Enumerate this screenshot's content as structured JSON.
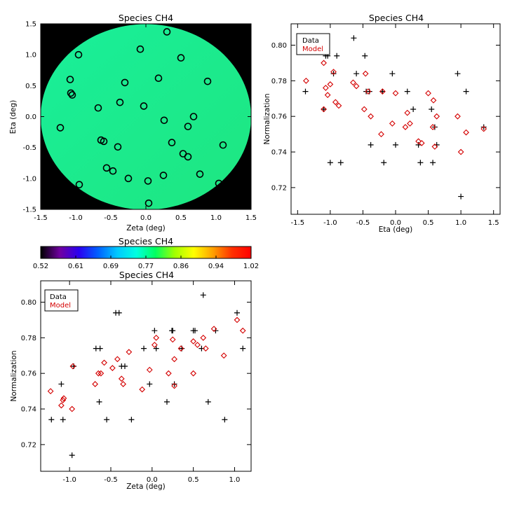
{
  "colors": {
    "data": "#000000",
    "model": "#d40000",
    "frame": "#000000",
    "map_background": "#000000"
  },
  "legend": {
    "data_label": "Data",
    "model_label": "Model",
    "placement": "top-left"
  },
  "chart_data": [
    {
      "id": "map",
      "type": "heatmap",
      "title": "Species CH4",
      "xlabel": "Zeta (deg)",
      "ylabel": "Eta (deg)",
      "xlim": [
        -1.5,
        1.5
      ],
      "ylim": [
        -1.5,
        1.5
      ],
      "xticks": [
        "-1.5",
        "-1.0",
        "-0.5",
        "0.0",
        "0.5",
        "1.0",
        "1.5"
      ],
      "yticks": [
        "-1.5",
        "-1.0",
        "-0.5",
        "0.0",
        "0.5",
        "1.0",
        "1.5"
      ],
      "field_radius_deg": 1.5,
      "field_color_range": [
        "#19ef9a",
        "#1ee680"
      ],
      "markers": [
        [
          -0.96,
          1.0
        ],
        [
          0.3,
          1.37
        ],
        [
          -0.08,
          1.09
        ],
        [
          0.5,
          0.95
        ],
        [
          -1.08,
          0.6
        ],
        [
          -1.07,
          0.38
        ],
        [
          -1.05,
          0.35
        ],
        [
          -0.3,
          0.55
        ],
        [
          0.18,
          0.62
        ],
        [
          0.88,
          0.57
        ],
        [
          -0.68,
          0.14
        ],
        [
          -0.37,
          0.23
        ],
        [
          -0.03,
          0.17
        ],
        [
          0.68,
          0.0
        ],
        [
          0.26,
          -0.06
        ],
        [
          0.6,
          -0.16
        ],
        [
          -1.22,
          -0.18
        ],
        [
          -0.64,
          -0.38
        ],
        [
          -0.6,
          -0.4
        ],
        [
          -0.4,
          -0.49
        ],
        [
          0.37,
          -0.42
        ],
        [
          1.1,
          -0.46
        ],
        [
          0.53,
          -0.6
        ],
        [
          0.6,
          -0.65
        ],
        [
          -0.56,
          -0.83
        ],
        [
          -0.47,
          -0.88
        ],
        [
          0.25,
          -0.95
        ],
        [
          0.77,
          -0.93
        ],
        [
          -0.25,
          -1.0
        ],
        [
          0.03,
          -1.04
        ],
        [
          -0.95,
          -1.1
        ],
        [
          1.04,
          -1.08
        ],
        [
          0.04,
          -1.4
        ]
      ]
    },
    {
      "id": "eta",
      "type": "scatter",
      "title": "Species CH4",
      "xlabel": "Eta (deg)",
      "ylabel": "Normalization",
      "xlim": [
        -1.6,
        1.6
      ],
      "ylim": [
        0.705,
        0.812
      ],
      "xticks": [
        -1.5,
        -1.0,
        -0.5,
        0.0,
        0.5,
        1.0,
        1.5
      ],
      "yticks": [
        0.72,
        0.74,
        0.76,
        0.78,
        0.8
      ],
      "series": [
        {
          "name": "Data",
          "marker": "plus",
          "points": [
            [
              -1.38,
              0.774
            ],
            [
              -1.1,
              0.764
            ],
            [
              -1.07,
              0.794
            ],
            [
              -1.04,
              0.794
            ],
            [
              -1.0,
              0.734
            ],
            [
              -0.95,
              0.784
            ],
            [
              -0.9,
              0.794
            ],
            [
              -0.84,
              0.734
            ],
            [
              -0.64,
              0.804
            ],
            [
              -0.6,
              0.784
            ],
            [
              -0.47,
              0.794
            ],
            [
              -0.45,
              0.774
            ],
            [
              -0.4,
              0.774
            ],
            [
              -0.38,
              0.744
            ],
            [
              -0.2,
              0.774
            ],
            [
              -0.18,
              0.734
            ],
            [
              -0.05,
              0.784
            ],
            [
              0.0,
              0.744
            ],
            [
              0.18,
              0.774
            ],
            [
              0.27,
              0.764
            ],
            [
              0.35,
              0.744
            ],
            [
              0.38,
              0.734
            ],
            [
              0.55,
              0.764
            ],
            [
              0.57,
              0.734
            ],
            [
              0.6,
              0.754
            ],
            [
              0.63,
              0.744
            ],
            [
              0.95,
              0.784
            ],
            [
              1.0,
              0.715
            ],
            [
              1.08,
              0.774
            ],
            [
              1.35,
              0.754
            ]
          ]
        },
        {
          "name": "Model",
          "marker": "diamond",
          "points": [
            [
              -1.37,
              0.78
            ],
            [
              -1.1,
              0.79
            ],
            [
              -1.1,
              0.764
            ],
            [
              -1.07,
              0.776
            ],
            [
              -1.04,
              0.772
            ],
            [
              -1.0,
              0.778
            ],
            [
              -0.95,
              0.785
            ],
            [
              -0.92,
              0.768
            ],
            [
              -0.87,
              0.766
            ],
            [
              -0.65,
              0.779
            ],
            [
              -0.6,
              0.777
            ],
            [
              -0.48,
              0.764
            ],
            [
              -0.46,
              0.784
            ],
            [
              -0.42,
              0.774
            ],
            [
              -0.38,
              0.76
            ],
            [
              -0.2,
              0.774
            ],
            [
              -0.22,
              0.75
            ],
            [
              -0.05,
              0.756
            ],
            [
              0.0,
              0.773
            ],
            [
              0.15,
              0.754
            ],
            [
              0.18,
              0.762
            ],
            [
              0.22,
              0.756
            ],
            [
              0.35,
              0.746
            ],
            [
              0.4,
              0.745
            ],
            [
              0.5,
              0.773
            ],
            [
              0.57,
              0.754
            ],
            [
              0.58,
              0.769
            ],
            [
              0.6,
              0.743
            ],
            [
              0.63,
              0.76
            ],
            [
              0.95,
              0.76
            ],
            [
              1.0,
              0.74
            ],
            [
              1.08,
              0.751
            ],
            [
              1.35,
              0.753
            ]
          ]
        }
      ]
    },
    {
      "id": "colorbar",
      "type": "colorbar",
      "title": "Species CH4",
      "range": [
        0.52,
        1.02
      ],
      "tick_labels": [
        "0.52",
        "0.61",
        "0.69",
        "0.77",
        "0.86",
        "0.94",
        "1.02"
      ],
      "colormap_stops": [
        "#000000",
        "#7000a0",
        "#2a00f0",
        "#0060ff",
        "#00c8ff",
        "#00ffe0",
        "#00ff60",
        "#a0ff00",
        "#ffff00",
        "#ffa000",
        "#ff3000",
        "#ff0000"
      ]
    },
    {
      "id": "zeta",
      "type": "scatter",
      "title": "Species CH4",
      "xlabel": "Zeta (deg)",
      "ylabel": "Normalization",
      "xlim": [
        -1.35,
        1.2
      ],
      "ylim": [
        0.705,
        0.812
      ],
      "xticks": [
        -1.0,
        -0.5,
        0.0,
        0.5,
        1.0
      ],
      "yticks": [
        0.72,
        0.74,
        0.76,
        0.78,
        0.8
      ],
      "series": [
        {
          "name": "Data",
          "marker": "plus",
          "points": [
            [
              -1.22,
              0.734
            ],
            [
              -1.1,
              0.754
            ],
            [
              -1.08,
              0.734
            ],
            [
              -0.97,
              0.714
            ],
            [
              -0.95,
              0.764
            ],
            [
              -0.68,
              0.774
            ],
            [
              -0.64,
              0.744
            ],
            [
              -0.63,
              0.774
            ],
            [
              -0.55,
              0.734
            ],
            [
              -0.44,
              0.794
            ],
            [
              -0.4,
              0.794
            ],
            [
              -0.37,
              0.764
            ],
            [
              -0.33,
              0.764
            ],
            [
              -0.25,
              0.734
            ],
            [
              -0.1,
              0.774
            ],
            [
              -0.03,
              0.754
            ],
            [
              0.03,
              0.784
            ],
            [
              0.05,
              0.774
            ],
            [
              0.18,
              0.744
            ],
            [
              0.24,
              0.784
            ],
            [
              0.25,
              0.784
            ],
            [
              0.27,
              0.754
            ],
            [
              0.36,
              0.774
            ],
            [
              0.5,
              0.784
            ],
            [
              0.52,
              0.784
            ],
            [
              0.6,
              0.774
            ],
            [
              0.62,
              0.804
            ],
            [
              0.68,
              0.744
            ],
            [
              0.77,
              0.784
            ],
            [
              0.88,
              0.734
            ],
            [
              1.03,
              0.794
            ],
            [
              1.1,
              0.774
            ]
          ]
        },
        {
          "name": "Model",
          "marker": "diamond",
          "points": [
            [
              -1.23,
              0.75
            ],
            [
              -1.1,
              0.742
            ],
            [
              -1.08,
              0.745
            ],
            [
              -1.07,
              0.746
            ],
            [
              -0.96,
              0.764
            ],
            [
              -0.97,
              0.74
            ],
            [
              -0.69,
              0.754
            ],
            [
              -0.65,
              0.76
            ],
            [
              -0.62,
              0.76
            ],
            [
              -0.58,
              0.766
            ],
            [
              -0.48,
              0.763
            ],
            [
              -0.42,
              0.768
            ],
            [
              -0.37,
              0.757
            ],
            [
              -0.35,
              0.754
            ],
            [
              -0.28,
              0.772
            ],
            [
              -0.12,
              0.751
            ],
            [
              -0.03,
              0.762
            ],
            [
              0.03,
              0.776
            ],
            [
              0.05,
              0.78
            ],
            [
              0.2,
              0.76
            ],
            [
              0.25,
              0.779
            ],
            [
              0.27,
              0.753
            ],
            [
              0.27,
              0.768
            ],
            [
              0.35,
              0.774
            ],
            [
              0.5,
              0.76
            ],
            [
              0.5,
              0.778
            ],
            [
              0.55,
              0.776
            ],
            [
              0.62,
              0.78
            ],
            [
              0.65,
              0.774
            ],
            [
              0.75,
              0.785
            ],
            [
              0.87,
              0.77
            ],
            [
              1.03,
              0.79
            ],
            [
              1.1,
              0.784
            ]
          ]
        }
      ]
    }
  ]
}
